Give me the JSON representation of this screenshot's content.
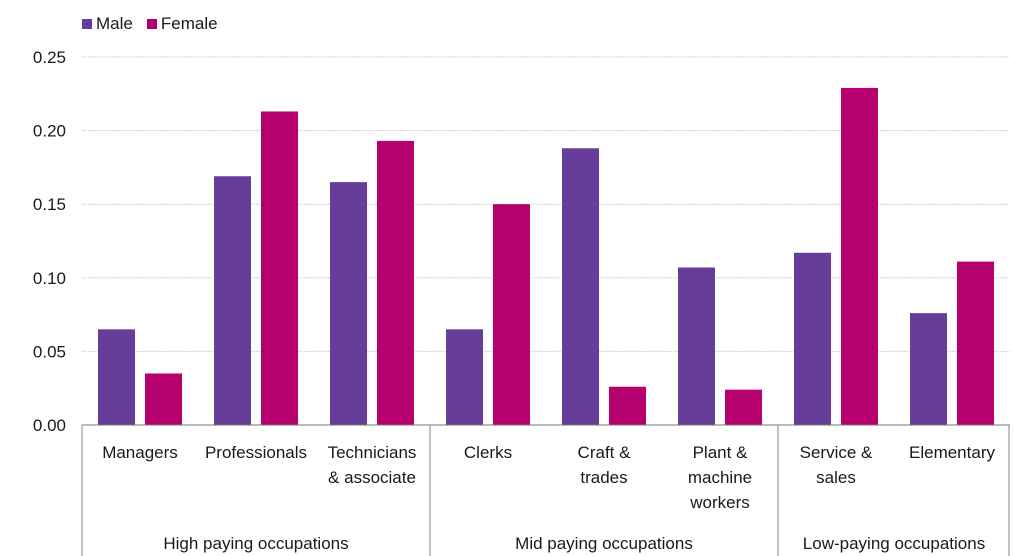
{
  "chart_data": {
    "type": "bar",
    "categories": [
      [
        "Managers"
      ],
      [
        "Professionals"
      ],
      [
        "Technicians",
        "& associate"
      ],
      [
        "Clerks"
      ],
      [
        "Craft &",
        "trades"
      ],
      [
        "Plant &",
        "machine",
        "workers"
      ],
      [
        "Service &",
        "sales"
      ],
      [
        "Elementary"
      ]
    ],
    "groups": [
      {
        "label": "High paying occupations",
        "start": 0,
        "end": 2
      },
      {
        "label": "Mid paying occupations",
        "start": 3,
        "end": 5
      },
      {
        "label": "Low-paying occupations",
        "start": 6,
        "end": 7
      }
    ],
    "series": [
      {
        "name": "Male",
        "color": "#663d99",
        "values": [
          0.065,
          0.169,
          0.165,
          0.065,
          0.188,
          0.107,
          0.117,
          0.076
        ]
      },
      {
        "name": "Female",
        "color": "#b5006e",
        "values": [
          0.035,
          0.213,
          0.193,
          0.15,
          0.026,
          0.024,
          0.229,
          0.111
        ]
      }
    ],
    "yticks": [
      "0.00",
      "0.05",
      "0.10",
      "0.15",
      "0.20",
      "0.25"
    ],
    "ylim": [
      0,
      0.25
    ],
    "legend_position": "top-left",
    "grid": true
  }
}
